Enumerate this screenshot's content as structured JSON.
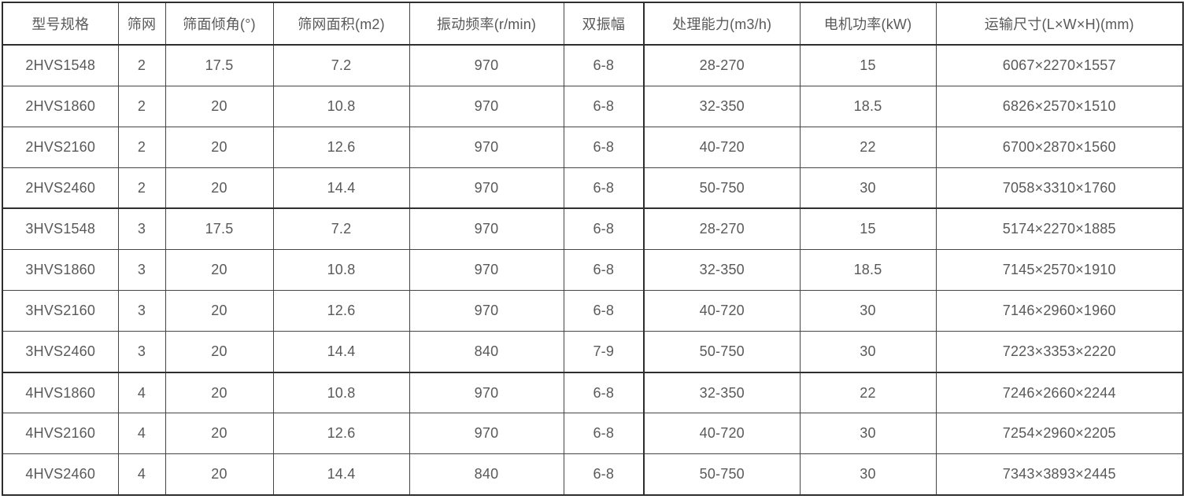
{
  "chart_data": {
    "type": "table",
    "title": "",
    "columns": [
      "型号规格",
      "筛网",
      "筛面倾角(°)",
      "筛网面积(m2)",
      "振动频率(r/min)",
      "双振幅",
      "处理能力(m3/h)",
      "电机功率(kW)",
      "运输尺寸(L×W×H)(mm)"
    ],
    "groups": [
      [
        [
          "2HVS1548",
          "2",
          "17.5",
          "7.2",
          "970",
          "6-8",
          "28-270",
          "15",
          "6067×2270×1557"
        ],
        [
          "2HVS1860",
          "2",
          "20",
          "10.8",
          "970",
          "6-8",
          "32-350",
          "18.5",
          "6826×2570×1510"
        ],
        [
          "2HVS2160",
          "2",
          "20",
          "12.6",
          "970",
          "6-8",
          "40-720",
          "22",
          "6700×2870×1560"
        ],
        [
          "2HVS2460",
          "2",
          "20",
          "14.4",
          "970",
          "6-8",
          "50-750",
          "30",
          "7058×3310×1760"
        ]
      ],
      [
        [
          "3HVS1548",
          "3",
          "17.5",
          "7.2",
          "970",
          "6-8",
          "28-270",
          "15",
          "5174×2270×1885"
        ],
        [
          "3HVS1860",
          "3",
          "20",
          "10.8",
          "970",
          "6-8",
          "32-350",
          "18.5",
          "7145×2570×1910"
        ],
        [
          "3HVS2160",
          "3",
          "20",
          "12.6",
          "970",
          "6-8",
          "40-720",
          "30",
          "7146×2960×1960"
        ],
        [
          "3HVS2460",
          "3",
          "20",
          "14.4",
          "840",
          "7-9",
          "50-750",
          "30",
          "7223×3353×2220"
        ]
      ],
      [
        [
          "4HVS1860",
          "4",
          "20",
          "10.8",
          "970",
          "6-8",
          "32-350",
          "22",
          "7246×2660×2244"
        ],
        [
          "4HVS2160",
          "4",
          "20",
          "12.6",
          "970",
          "6-8",
          "40-720",
          "30",
          "7254×2960×2205"
        ],
        [
          "4HVS2460",
          "4",
          "20",
          "14.4",
          "840",
          "6-8",
          "50-750",
          "30",
          "7343×3893×2445"
        ]
      ]
    ],
    "colors": {
      "text": "#595959",
      "border_thin": "#454545",
      "border_thick": "#2e2e2e",
      "background": "#ffffff"
    },
    "layout_hints": {
      "grid": true,
      "header_row": true,
      "group_dividers_after_rows": [
        4,
        8
      ],
      "thick_vertical_rule_left_of_column": "处理能力(m3/h)"
    }
  }
}
